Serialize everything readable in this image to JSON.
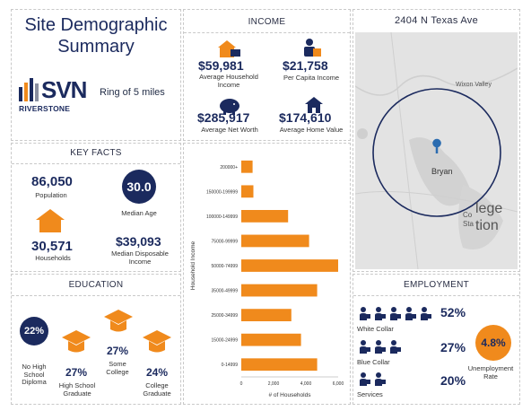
{
  "header": {
    "title_line1": "Site Demographic",
    "title_line2": "Summary",
    "logo_main": "SVN",
    "logo_sub": "RIVERSTONE",
    "ring_label": "Ring of 5 miles"
  },
  "income": {
    "title": "INCOME",
    "avg_household_value": "$59,981",
    "avg_household_label": "Average Household Income",
    "per_capita_value": "$21,758",
    "per_capita_label": "Per Capita Income",
    "net_worth_value": "$285,917",
    "net_worth_label": "Average Net Worth",
    "home_value_value": "$174,610",
    "home_value_label": "Average Home Value"
  },
  "map": {
    "title": "2404 N Texas Ave",
    "place_bryan": "Bryan",
    "place_wixon": "Wixon Valley",
    "place_college_1": "lege",
    "place_college_2": "tion",
    "place_sta": "Sta",
    "place_co": "Co"
  },
  "key_facts": {
    "title": "KEY FACTS",
    "population_value": "86,050",
    "population_label": "Population",
    "median_age_value": "30.0",
    "median_age_label": "Median Age",
    "households_value": "30,571",
    "households_label": "Households",
    "disposable_value": "$39,093",
    "disposable_label": "Median Disposable Income"
  },
  "education": {
    "title": "EDUCATION",
    "no_hs_value": "22%",
    "no_hs_label": "No High School Diploma",
    "hs_value": "27%",
    "hs_label": "High School Graduate",
    "some_college_value": "27%",
    "some_college_label": "Some College",
    "college_value": "24%",
    "college_label": "College Graduate"
  },
  "employment": {
    "title": "EMPLOYMENT",
    "white_collar_value": "52%",
    "white_collar_label": "White Collar",
    "blue_collar_value": "27%",
    "blue_collar_label": "Blue Collar",
    "services_value": "20%",
    "services_label": "Services",
    "unemployment_value": "4.8%",
    "unemployment_label": "Unemployment Rate"
  },
  "colors": {
    "navy": "#1b2a5e",
    "orange": "#f08a1c"
  },
  "chart_data": {
    "type": "bar",
    "orientation": "horizontal",
    "categories": [
      "200000+",
      "150000-199999",
      "100000-149999",
      "75000-99999",
      "50000-74999",
      "35000-49999",
      "25000-34999",
      "15000-24999",
      "0-14999"
    ],
    "values": [
      700,
      750,
      2900,
      4200,
      6000,
      4700,
      3100,
      3700,
      4700
    ],
    "xlabel": "# of Households",
    "ylabel": "Household Income",
    "xticks": [
      "0",
      "2,000",
      "4,000",
      "6,000"
    ],
    "xlim": [
      0,
      6000
    ],
    "grid": false,
    "color": "#f08a1c"
  }
}
